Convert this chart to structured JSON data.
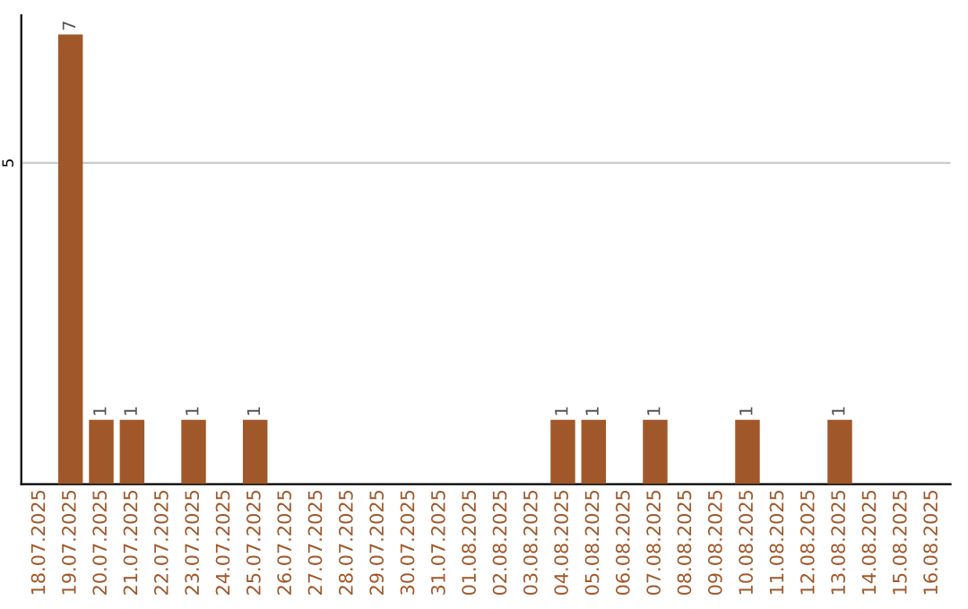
{
  "chart_data": {
    "type": "bar",
    "categories": [
      "18.07.2025",
      "19.07.2025",
      "20.07.2025",
      "21.07.2025",
      "22.07.2025",
      "23.07.2025",
      "24.07.2025",
      "25.07.2025",
      "26.07.2025",
      "27.07.2025",
      "28.07.2025",
      "29.07.2025",
      "30.07.2025",
      "31.07.2025",
      "01.08.2025",
      "02.08.2025",
      "03.08.2025",
      "04.08.2025",
      "05.08.2025",
      "06.08.2025",
      "07.08.2025",
      "08.08.2025",
      "09.08.2025",
      "10.08.2025",
      "11.08.2025",
      "12.08.2025",
      "13.08.2025",
      "14.08.2025",
      "15.08.2025",
      "16.08.2025"
    ],
    "values": [
      0,
      7,
      1,
      1,
      0,
      1,
      0,
      1,
      0,
      0,
      0,
      0,
      0,
      0,
      0,
      0,
      0,
      1,
      1,
      0,
      1,
      0,
      0,
      1,
      0,
      0,
      1,
      0,
      0,
      0
    ],
    "value_labels": [
      null,
      "7",
      "1",
      "1",
      null,
      "1",
      null,
      "1",
      null,
      null,
      null,
      null,
      null,
      null,
      null,
      null,
      null,
      "1",
      "1",
      null,
      "1",
      null,
      null,
      "1",
      null,
      null,
      "1",
      null,
      null,
      null
    ],
    "color": "#a0582a",
    "ylim": [
      0,
      7.3
    ],
    "yticks": [
      5
    ],
    "grid": "y"
  }
}
